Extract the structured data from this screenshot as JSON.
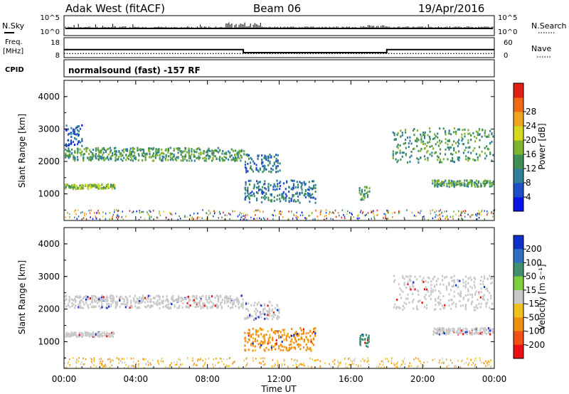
{
  "header": {
    "station": "Adak West (fitACF)",
    "beam": "Beam 06",
    "date": "19/Apr/2016"
  },
  "strip_labels": {
    "nsky": "N.Sky",
    "nsearch": "N.Search",
    "freq_line1": "Freq.",
    "freq_line2": "[MHz]",
    "nave": "Nave",
    "cpid": "CPID",
    "cpid_value": "normalsound (fast) -157 RF",
    "noise_ticks": [
      "10^5",
      "10^0"
    ],
    "freq_ticks": [
      "18",
      "8"
    ],
    "nave_ticks": [
      "60",
      "0"
    ]
  },
  "x_axis": {
    "label": "Time UT",
    "ticks": [
      "00:00",
      "04:00",
      "08:00",
      "12:00",
      "16:00",
      "20:00",
      "00:00"
    ]
  },
  "chart_data": [
    {
      "type": "line",
      "name": "frequency-nave-strip",
      "x_unit": "hour UT",
      "series": [
        {
          "name": "Freq.",
          "x": [
            0,
            10,
            10,
            18,
            18,
            24
          ],
          "values": [
            12.0,
            12.0,
            10.5,
            10.5,
            12.0,
            12.0
          ]
        },
        {
          "name": "Nave",
          "x": [
            0,
            24
          ],
          "values": [
            8,
            8
          ]
        }
      ],
      "ylim_left": [
        8,
        18
      ],
      "ylim_right": [
        0,
        60
      ]
    },
    {
      "type": "heatmap",
      "name": "power-panel",
      "ylabel": "Slant Range [km]",
      "xlabel": "Time UT",
      "xlim": [
        0,
        24
      ],
      "ylim": [
        180,
        4500
      ],
      "y_ticks": [
        "1000",
        "2000",
        "3000",
        "4000"
      ],
      "colorbar": {
        "label": "Power [dB]",
        "ticks": [
          "4",
          "8",
          "12",
          "16",
          "20",
          "24",
          "28"
        ],
        "colors": [
          "#0a14e6",
          "#1f4fc8",
          "#2f7f9a",
          "#3f8f55",
          "#7fb330",
          "#d8d81f",
          "#f0a31c",
          "#f06a14",
          "#e02014"
        ]
      },
      "echo_regions": [
        {
          "t_start": 0.0,
          "t_end": 10.0,
          "range_start": 2050,
          "range_end": 2450,
          "level": 3
        },
        {
          "t_start": 0.0,
          "t_end": 1.0,
          "range_start": 2500,
          "range_end": 3150,
          "level": 1
        },
        {
          "t_start": 0.0,
          "t_end": 2.8,
          "range_start": 1180,
          "range_end": 1320,
          "level": 4
        },
        {
          "t_start": 10.0,
          "t_end": 12.0,
          "range_start": 1700,
          "range_end": 2250,
          "level": 2
        },
        {
          "t_start": 10.0,
          "t_end": 14.0,
          "range_start": 750,
          "range_end": 1450,
          "level": 2
        },
        {
          "t_start": 16.4,
          "t_end": 17.0,
          "range_start": 850,
          "range_end": 1250,
          "level": 3
        },
        {
          "t_start": 18.3,
          "t_end": 24.0,
          "range_start": 2000,
          "range_end": 3050,
          "level": 3
        },
        {
          "t_start": 20.5,
          "t_end": 24.0,
          "range_start": 1250,
          "range_end": 1450,
          "level": 3
        }
      ]
    },
    {
      "type": "heatmap",
      "name": "velocity-panel",
      "ylabel": "Slant Range [km]",
      "xlabel": "Time UT",
      "xlim": [
        0,
        24
      ],
      "ylim": [
        180,
        4500
      ],
      "y_ticks": [
        "1000",
        "2000",
        "3000",
        "4000"
      ],
      "colorbar": {
        "label": "Velocity [m s⁻¹]",
        "ticks": [
          "200",
          "100",
          "50",
          "15",
          "-15",
          "-50",
          "-100",
          "-200"
        ],
        "colors": [
          "#1030c8",
          "#2f6fc0",
          "#3f8f70",
          "#7fcf3a",
          "#c8c8c8",
          "#f0c020",
          "#f09010",
          "#f05010",
          "#e81010"
        ]
      },
      "echo_regions": [
        {
          "t_start": 0.0,
          "t_end": 10.0,
          "range_start": 2050,
          "range_end": 2450,
          "velocity": 0
        },
        {
          "t_start": 0.0,
          "t_end": 2.8,
          "range_start": 1180,
          "range_end": 1320,
          "velocity": 0
        },
        {
          "t_start": 10.0,
          "t_end": 12.0,
          "range_start": 1700,
          "range_end": 2250,
          "velocity": 0
        },
        {
          "t_start": 10.0,
          "t_end": 14.0,
          "range_start": 750,
          "range_end": 1450,
          "velocity": -40
        },
        {
          "t_start": 16.4,
          "t_end": 17.0,
          "range_start": 850,
          "range_end": 1250,
          "velocity": 60
        },
        {
          "t_start": 18.3,
          "t_end": 24.0,
          "range_start": 2000,
          "range_end": 3050,
          "velocity": 0
        },
        {
          "t_start": 20.5,
          "t_end": 24.0,
          "range_start": 1250,
          "range_end": 1450,
          "velocity": 0
        }
      ]
    }
  ]
}
